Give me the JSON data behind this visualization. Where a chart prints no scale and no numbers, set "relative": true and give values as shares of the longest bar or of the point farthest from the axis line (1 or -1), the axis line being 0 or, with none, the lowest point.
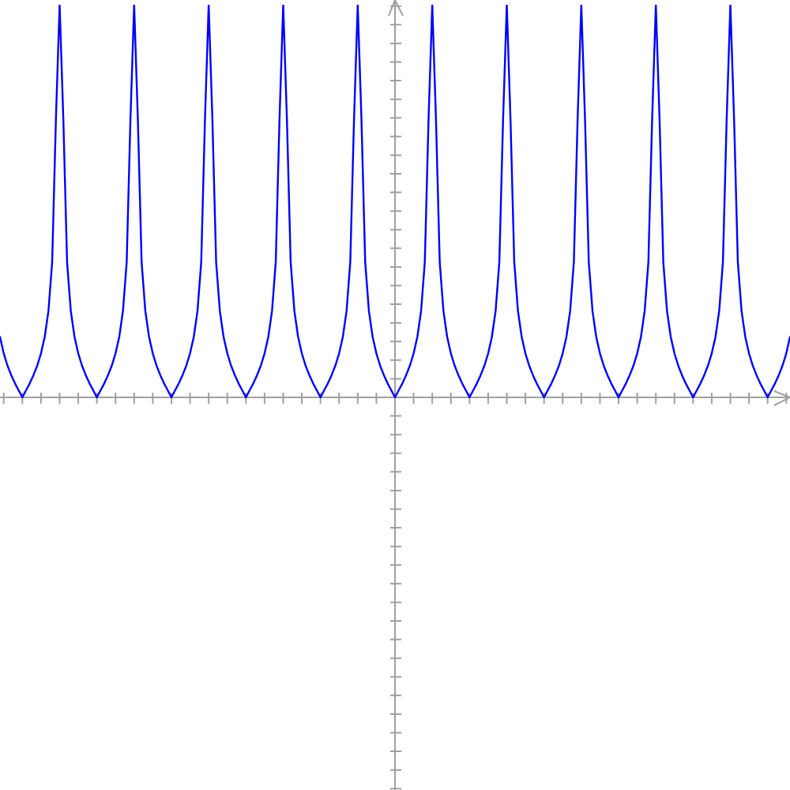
{
  "chart_data": {
    "type": "line",
    "relative": true,
    "marker": "none",
    "color": "#0000ff",
    "categories": [
      null,
      null,
      null,
      null,
      null,
      null,
      null,
      null,
      null,
      null,
      null,
      null,
      null,
      null,
      null,
      null,
      null,
      null,
      null,
      null,
      null,
      null,
      null,
      null,
      null,
      null,
      null,
      null,
      null,
      null,
      null,
      null,
      null,
      null,
      null,
      null,
      null,
      null,
      null,
      null,
      null,
      null,
      null,
      null,
      null,
      null,
      null,
      null,
      null,
      null,
      null,
      null,
      null,
      null,
      null,
      null,
      null,
      null,
      null,
      null,
      null,
      null,
      null,
      null,
      null,
      null,
      null,
      null,
      null,
      null,
      null,
      null,
      null,
      null,
      null,
      null,
      null,
      null,
      null,
      null,
      null,
      null,
      null,
      null,
      null,
      null,
      null,
      null,
      null,
      null,
      null,
      null,
      null,
      null,
      null,
      null,
      null,
      null,
      null,
      null,
      null,
      null,
      null,
      null,
      null,
      null,
      null,
      null,
      null,
      null,
      null,
      null,
      null,
      null,
      null,
      null,
      null,
      null,
      null,
      null,
      null,
      null,
      null,
      null,
      null,
      null,
      null,
      null,
      null,
      null,
      null,
      null,
      null,
      null,
      null,
      null,
      null,
      null,
      null,
      null,
      null,
      null,
      null,
      null,
      null,
      null,
      null,
      null,
      null,
      null,
      null,
      null,
      null,
      null,
      null,
      null,
      null,
      null,
      null,
      null,
      null,
      null,
      null,
      null,
      null,
      null,
      null,
      null,
      null,
      null,
      null,
      null,
      null,
      null,
      null,
      null,
      null,
      null,
      null,
      null,
      null,
      null,
      null,
      null,
      null,
      null,
      null,
      null,
      null,
      null,
      null,
      null,
      null,
      null,
      null,
      null,
      null,
      null,
      null,
      null,
      null,
      null,
      null,
      null,
      null,
      null,
      null,
      null,
      null,
      null,
      null,
      null,
      null
    ],
    "values": [
      0.154,
      0.112,
      0.081,
      0.057,
      0.036,
      0.018,
      0,
      0.018,
      0.036,
      0.057,
      0.081,
      0.112,
      0.154,
      0.22,
      0.345,
      0.707,
      1,
      0.707,
      0.345,
      0.22,
      0.154,
      0.112,
      0.081,
      0.057,
      0.036,
      0.018,
      0,
      0.018,
      0.036,
      0.057,
      0.081,
      0.112,
      0.154,
      0.22,
      0.345,
      0.707,
      1,
      0.707,
      0.345,
      0.22,
      0.154,
      0.112,
      0.081,
      0.057,
      0.036,
      0.018,
      0,
      0.018,
      0.036,
      0.057,
      0.081,
      0.112,
      0.154,
      0.22,
      0.345,
      0.707,
      1,
      0.707,
      0.345,
      0.22,
      0.154,
      0.112,
      0.081,
      0.057,
      0.036,
      0.018,
      0,
      0.018,
      0.036,
      0.057,
      0.081,
      0.112,
      0.154,
      0.22,
      0.345,
      0.707,
      1,
      0.707,
      0.345,
      0.22,
      0.154,
      0.112,
      0.081,
      0.057,
      0.036,
      0.018,
      0,
      0.018,
      0.036,
      0.057,
      0.081,
      0.112,
      0.154,
      0.22,
      0.345,
      0.707,
      1,
      0.707,
      0.345,
      0.22,
      0.154,
      0.112,
      0.081,
      0.057,
      0.036,
      0.018,
      0,
      0.018,
      0.036,
      0.057,
      0.081,
      0.112,
      0.154,
      0.22,
      0.345,
      0.707,
      1,
      0.707,
      0.345,
      0.22,
      0.154,
      0.112,
      0.081,
      0.057,
      0.036,
      0.018,
      0,
      0.018,
      0.036,
      0.057,
      0.081,
      0.112,
      0.154,
      0.22,
      0.345,
      0.707,
      1,
      0.707,
      0.345,
      0.22,
      0.154,
      0.112,
      0.081,
      0.057,
      0.036,
      0.018,
      0,
      0.018,
      0.036,
      0.057,
      0.081,
      0.112,
      0.154,
      0.22,
      0.345,
      0.707,
      1,
      0.707,
      0.345,
      0.22,
      0.154,
      0.112,
      0.081,
      0.057,
      0.036,
      0.018,
      0,
      0.018,
      0.036,
      0.057,
      0.081,
      0.112,
      0.154,
      0.22,
      0.345,
      0.707,
      1,
      0.707,
      0.345,
      0.22,
      0.154,
      0.112,
      0.081,
      0.057,
      0.036,
      0.018,
      0,
      0.018,
      0.036,
      0.057,
      0.081,
      0.112,
      0.154,
      0.22,
      0.345,
      0.707,
      1,
      0.707,
      0.345,
      0.22,
      0.154,
      0.112,
      0.081,
      0.057,
      0.036,
      0.018,
      0,
      0.018,
      0.036,
      0.057,
      0.081,
      0.112,
      0.154
    ]
  }
}
